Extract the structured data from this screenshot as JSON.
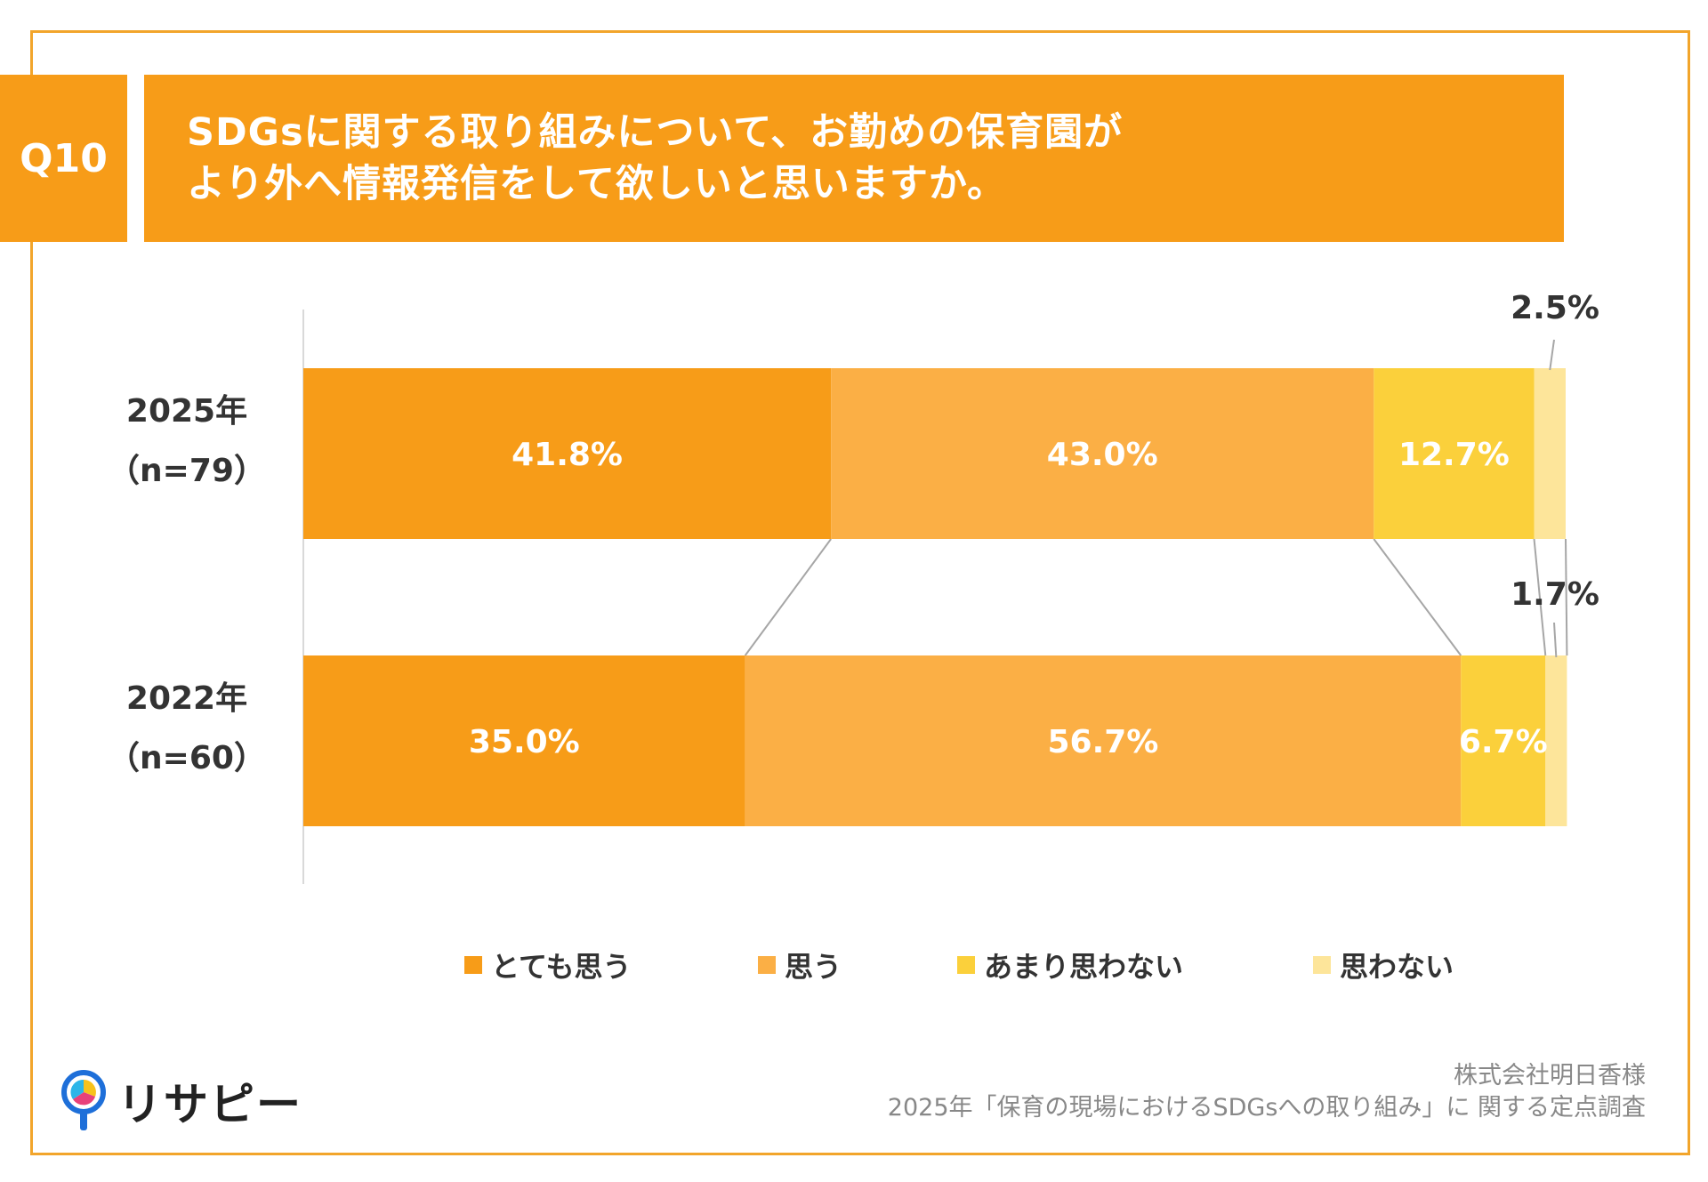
{
  "question": {
    "number": "Q10",
    "title_line1": "SDGsに関する取り組みについて、お勤めの保育園が",
    "title_line2": "より外へ情報発信をして欲しいと思いますか。"
  },
  "colors": {
    "frame": "#F2A52B",
    "header": "#F79C18",
    "very_much": "#F79C18",
    "agree": "#FBAF45",
    "not_much": "#FBD03B",
    "not_at_all": "#FDE59A",
    "connector": "#A6A6A6"
  },
  "chart_data": {
    "type": "bar",
    "orientation": "horizontal",
    "stacked": true,
    "percent": true,
    "xlim": [
      0,
      100
    ],
    "categories": [
      {
        "year": "2025年",
        "n": "（n=79）"
      },
      {
        "year": "2022年",
        "n": "（n=60）"
      }
    ],
    "series": [
      {
        "name": "とても思う",
        "values": [
          41.8,
          35.0
        ],
        "labels": [
          "41.8%",
          "35.0%"
        ]
      },
      {
        "name": "思う",
        "values": [
          43.0,
          56.7
        ],
        "labels": [
          "43.0%",
          "56.7%"
        ]
      },
      {
        "name": "あまり思わない",
        "values": [
          12.7,
          6.7
        ],
        "labels": [
          "12.7%",
          "6.7%"
        ]
      },
      {
        "name": "思わない",
        "values": [
          2.5,
          1.7
        ],
        "labels": [
          "2.5%",
          "1.7%"
        ]
      }
    ],
    "legend_position": "bottom",
    "series_lines": true
  },
  "footer": {
    "client": "株式会社明日香様",
    "survey": "2025年「保育の現場におけるSDGsへの取り組み」に 関する定点調査"
  },
  "logo": {
    "text": "リサピー",
    "icon": "magnifier-pie-icon"
  }
}
